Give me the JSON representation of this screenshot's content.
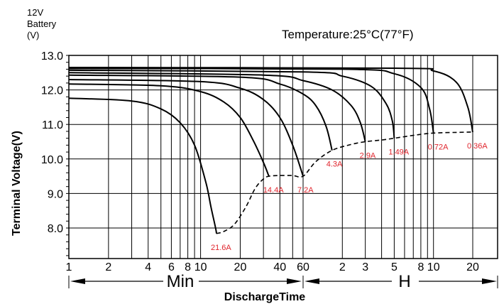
{
  "chart_data": {
    "type": "line",
    "header_lines": [
      "12V",
      "Battery",
      "(V)"
    ],
    "title": "Temperature:25°C(77°F)",
    "ylabel": "Terminal Voltage(V)",
    "xlabel": "DischargeTime",
    "y_ticks": [
      "13.0",
      "12.0",
      "11.0",
      "10.0",
      "9.0",
      "8.0"
    ],
    "ylim": [
      7.3,
      13.0
    ],
    "x_scale": "log",
    "x_ticks_min": [
      "1",
      "2",
      "4",
      "6",
      "8",
      "10",
      "20",
      "40",
      "60"
    ],
    "x_ticks_hour": [
      "2",
      "3",
      "5",
      "8",
      "10",
      "20"
    ],
    "min_label": "Min",
    "hour_label": "H",
    "grid": true,
    "series": [
      {
        "name": "21.6A",
        "x_min": [
          1,
          3,
          5,
          7,
          9,
          11,
          12,
          13,
          13.2
        ],
        "y": [
          11.76,
          11.68,
          11.45,
          11.05,
          10.4,
          9.3,
          8.6,
          8.0,
          7.84
        ]
      },
      {
        "name": "14.4A",
        "x_min": [
          1,
          5,
          10,
          15,
          20,
          25,
          30,
          33
        ],
        "y": [
          12.17,
          12.12,
          11.95,
          11.65,
          11.2,
          10.55,
          9.9,
          9.5
        ]
      },
      {
        "name": "7.2A",
        "x_min": [
          1,
          10,
          20,
          30,
          40,
          50,
          60
        ],
        "y": [
          12.3,
          12.24,
          12.05,
          11.72,
          11.2,
          10.4,
          9.5
        ]
      },
      {
        "name": "4.3A",
        "x_min": [
          1,
          20,
          40,
          60,
          75,
          90,
          100
        ],
        "y": [
          12.43,
          12.37,
          12.17,
          11.88,
          11.55,
          10.95,
          10.25
        ]
      },
      {
        "name": "2.9A",
        "x_min": [
          1,
          30,
          60,
          100,
          140,
          165,
          180
        ],
        "y": [
          12.5,
          12.43,
          12.27,
          12.0,
          11.55,
          11.05,
          10.5
        ]
      },
      {
        "name": "1.49A",
        "x_min": [
          1,
          60,
          120,
          200,
          260,
          290,
          300
        ],
        "y": [
          12.57,
          12.52,
          12.4,
          12.1,
          11.6,
          11.1,
          10.6
        ]
      },
      {
        "name": "0.72A",
        "x_min": [
          1,
          120,
          300,
          480,
          560,
          600
        ],
        "y": [
          12.62,
          12.6,
          12.47,
          12.07,
          11.45,
          10.75
        ]
      },
      {
        "name": "0.36A",
        "x_min": [
          1,
          300,
          600,
          900,
          1100,
          1200
        ],
        "y": [
          12.65,
          12.63,
          12.55,
          12.22,
          11.5,
          10.78
        ]
      }
    ],
    "end_voltage_curve": {
      "x_min": [
        13.2,
        15,
        18,
        22,
        26,
        30,
        33,
        40,
        50,
        60,
        75,
        100,
        140,
        180,
        240,
        300,
        450,
        600,
        900,
        1200
      ],
      "y": [
        7.84,
        7.9,
        8.1,
        8.6,
        9.15,
        9.42,
        9.5,
        9.52,
        9.52,
        9.5,
        9.92,
        10.25,
        10.42,
        10.5,
        10.55,
        10.6,
        10.7,
        10.75,
        10.77,
        10.78
      ]
    }
  },
  "colors": {
    "curve": "#000000",
    "label": "#e0242c",
    "grid": "#000000"
  }
}
